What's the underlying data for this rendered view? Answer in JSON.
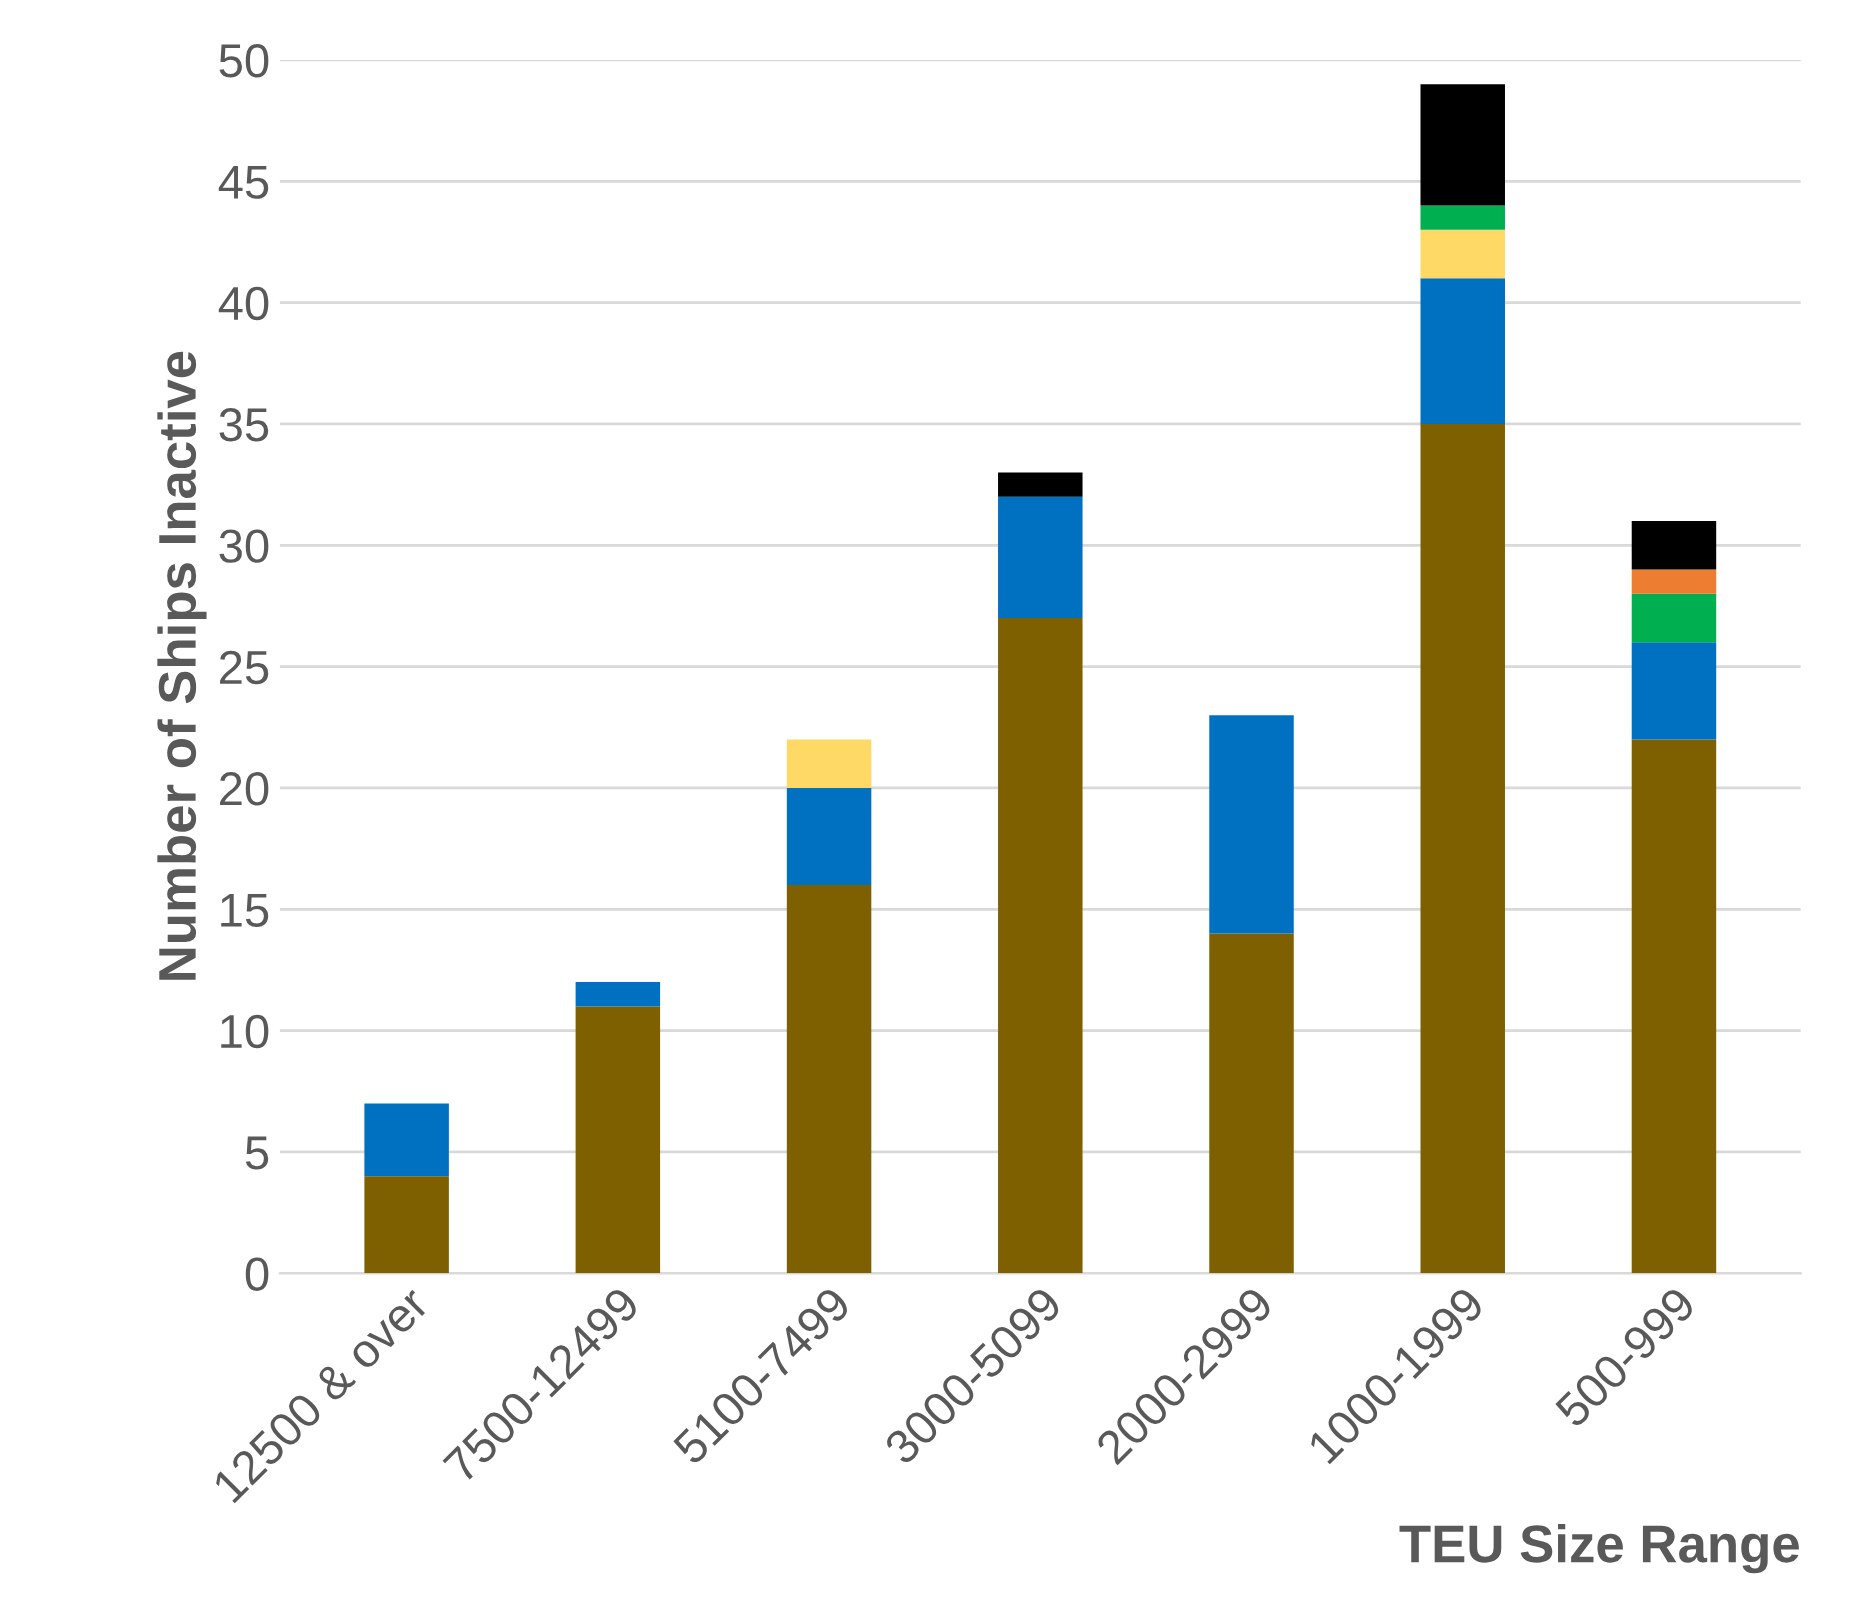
{
  "chart_data": {
    "type": "bar",
    "stacked": true,
    "xlabel": "TEU Size Range",
    "ylabel": "Number of Ships Inactive",
    "categories": [
      "12500 & over",
      "7500-12499",
      "5100-7499",
      "3000-5099",
      "2000-2999",
      "1000-1999",
      "500-999"
    ],
    "series": [
      {
        "color": "#7f6000",
        "values": [
          4,
          11,
          16,
          27,
          14,
          35,
          22
        ]
      },
      {
        "color": "#0070c0",
        "values": [
          3,
          1,
          4,
          5,
          9,
          6,
          4
        ]
      },
      {
        "color": "#ffd966",
        "values": [
          null,
          null,
          2,
          null,
          null,
          2,
          null
        ]
      },
      {
        "color": "#00b050",
        "values": [
          null,
          null,
          null,
          null,
          null,
          1,
          2
        ]
      },
      {
        "color": "#ed7d31",
        "values": [
          null,
          null,
          null,
          null,
          null,
          null,
          1
        ]
      },
      {
        "color": "#000000",
        "values": [
          null,
          null,
          null,
          1,
          null,
          5,
          2
        ]
      }
    ],
    "ylim": [
      0,
      50
    ],
    "yticks": [
      0,
      5,
      10,
      15,
      20,
      25,
      30,
      35,
      40,
      45,
      50
    ],
    "grid": "y",
    "legend": false
  }
}
